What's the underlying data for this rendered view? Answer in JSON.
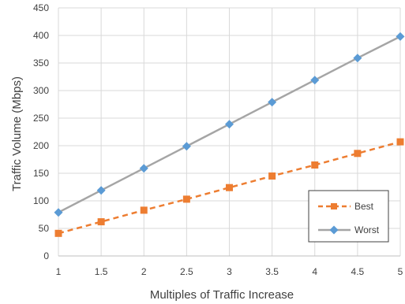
{
  "chart_data": {
    "type": "line",
    "xlabel": "Multiples of Traffic Increase",
    "ylabel": "Traffic Volume (Mbps)",
    "x": [
      1,
      1.5,
      2,
      2.5,
      3,
      3.5,
      4,
      4.5,
      5
    ],
    "x_ticks": [
      "1",
      "1.5",
      "2",
      "2.5",
      "3",
      "3.5",
      "4",
      "4.5",
      "5"
    ],
    "y_ticks": [
      "0",
      "50",
      "100",
      "150",
      "200",
      "250",
      "300",
      "350",
      "400",
      "450"
    ],
    "ylim": [
      0,
      450
    ],
    "xlim": [
      1,
      5
    ],
    "grid": true,
    "legend_position": "bottom-right",
    "series": [
      {
        "name": "Best",
        "marker": "square",
        "line_style": "dashed",
        "color": "#ED7D31",
        "values": [
          41,
          62,
          83,
          103,
          124,
          145,
          165,
          186,
          207
        ]
      },
      {
        "name": "Worst",
        "marker": "diamond",
        "line_style": "solid",
        "color": "#A5A5A5",
        "marker_color": "#5B9BD5",
        "values": [
          79,
          119,
          159,
          199,
          239,
          279,
          319,
          359,
          398
        ]
      }
    ]
  }
}
